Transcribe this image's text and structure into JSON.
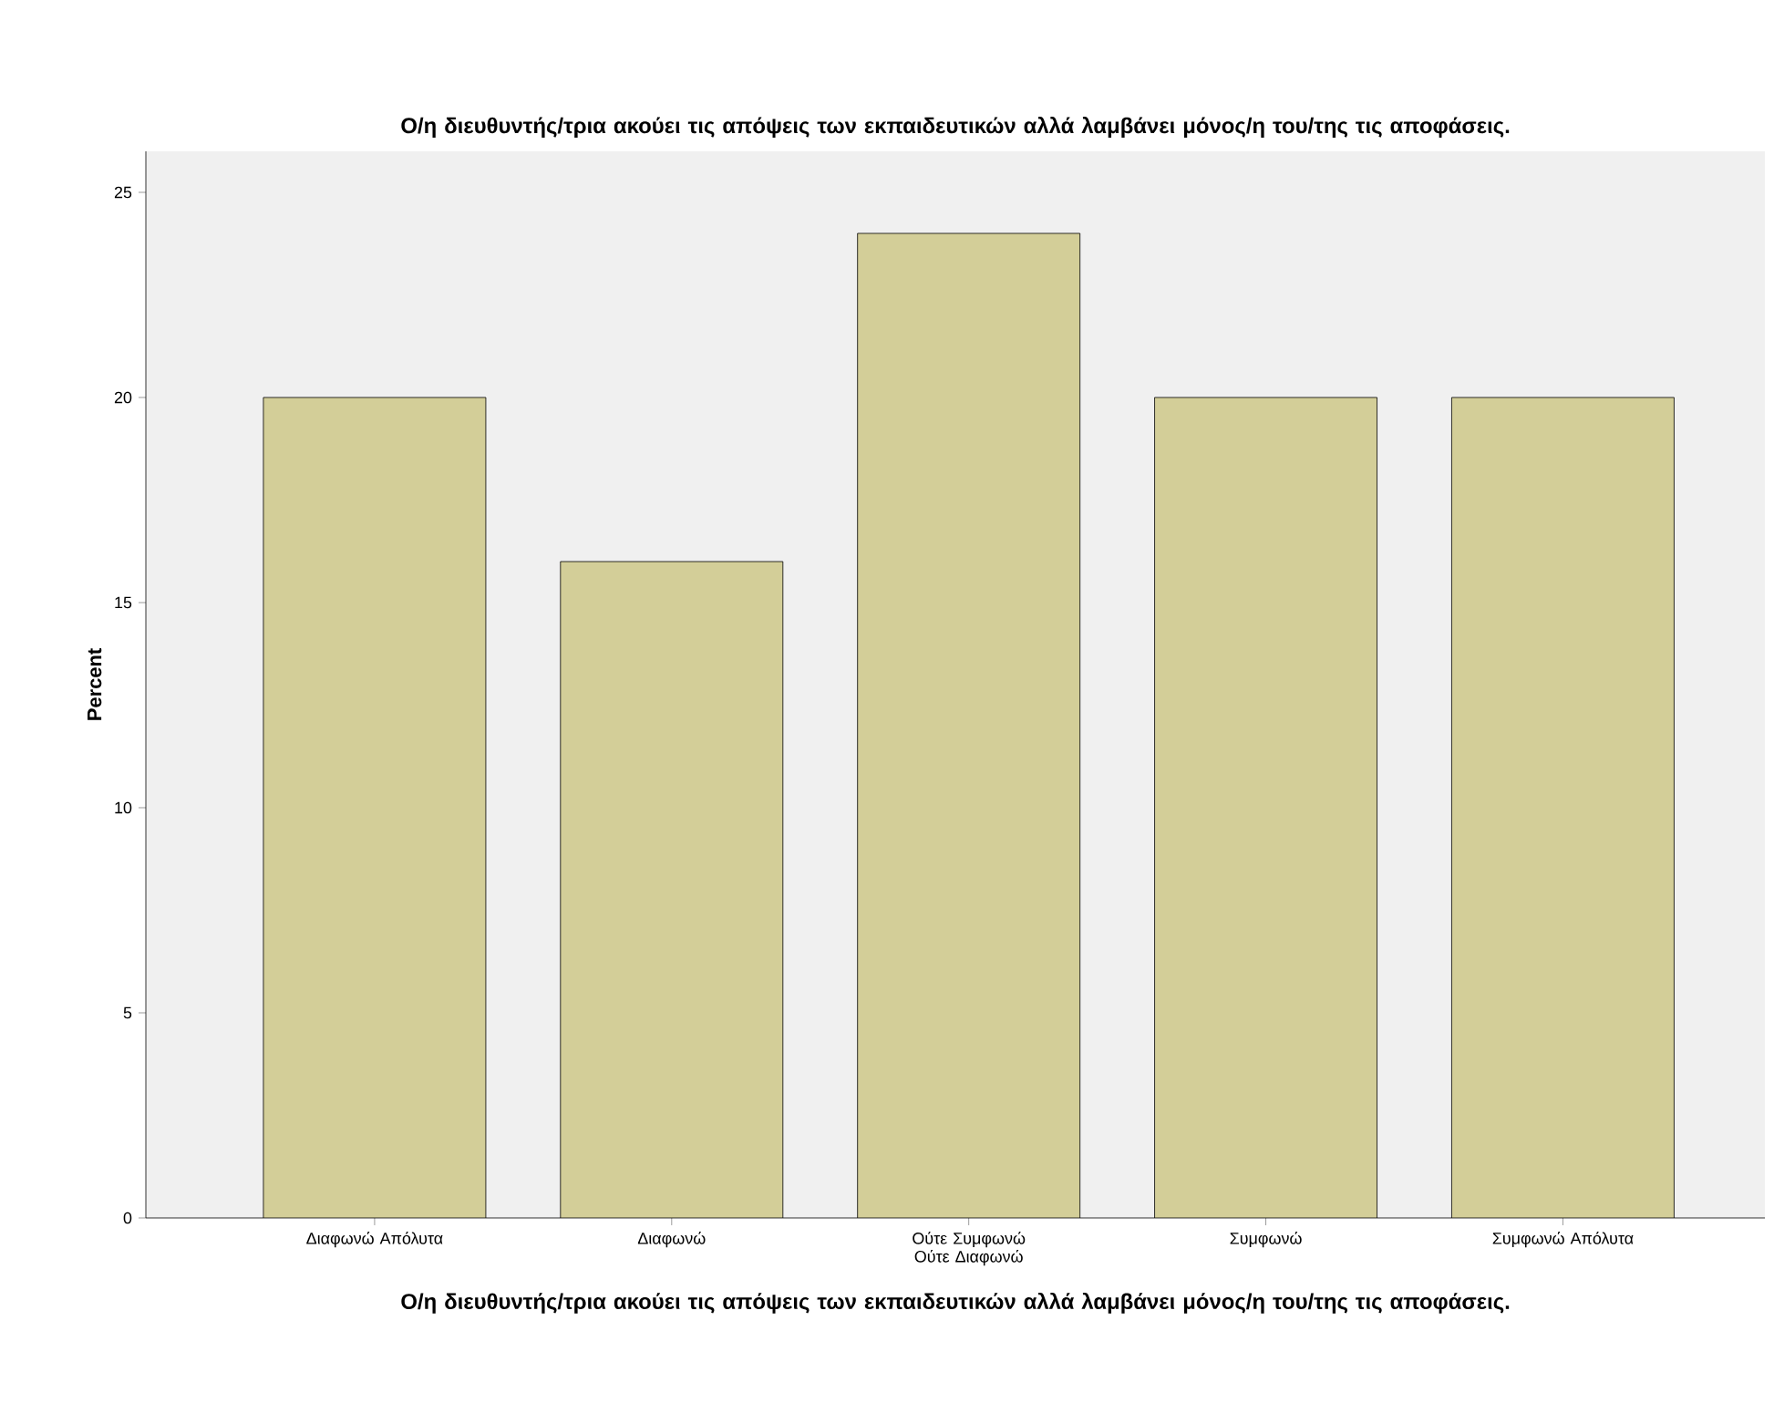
{
  "chart_data": {
    "type": "bar",
    "title": "Ο/η διευθυντής/τρια ακούει τις απόψεις των εκπαιδευτικών αλλά λαμβάνει μόνος/η του/της τις αποφάσεις.",
    "xlabel": "Ο/η διευθυντής/τρια ακούει τις απόψεις των εκπαιδευτικών αλλά λαμβάνει μόνος/η του/της τις αποφάσεις.",
    "ylabel": "Percent",
    "categories": [
      "Διαφωνώ Απόλυτα",
      "Διαφωνώ",
      "Ούτε Συμφωνώ Ούτε Διαφωνώ",
      "Συμφωνώ",
      "Συμφωνώ Απόλυτα"
    ],
    "values": [
      20,
      16,
      24,
      20,
      20
    ],
    "color": "#d3ce98",
    "ylim": [
      0,
      26
    ],
    "yticks": [
      0,
      5,
      10,
      15,
      20,
      25
    ],
    "grid": false
  }
}
